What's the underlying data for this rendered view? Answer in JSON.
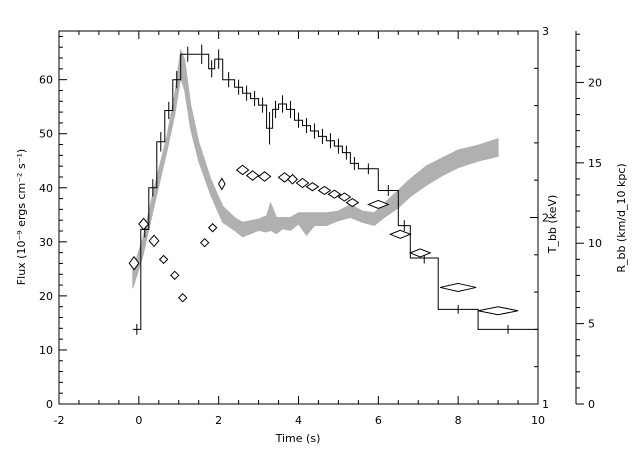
{
  "chart_data": {
    "type": "line",
    "xlabel": "Time (s)",
    "ylabel_left": "Flux (10⁻⁹ ergs cm⁻² s⁻¹)",
    "ylabel_right_inner": "T_bb (keV)",
    "ylabel_right_outer": "R_bb (km/d_10 kpc)",
    "xlim": [
      -2,
      10
    ],
    "ylim_left": [
      0,
      69
    ],
    "ylim_Tbb": [
      1,
      3
    ],
    "ylim_Rbb": [
      0,
      23.2
    ],
    "x_ticks": [
      -2,
      0,
      2,
      4,
      6,
      8,
      10
    ],
    "y_left_ticks": [
      0,
      10,
      20,
      30,
      40,
      50,
      60
    ],
    "y_Tbb_ticks": [
      1,
      2,
      3
    ],
    "y_Rbb_ticks": [
      0,
      5,
      10,
      15,
      20
    ],
    "colors": {
      "axes": "#000000",
      "band": "#b0b0b0"
    },
    "series": [
      {
        "style": "histogram",
        "points": [
          [
            -0.15,
            0.05,
            13.8,
            1.0
          ],
          [
            0.05,
            0.25,
            32.3,
            1.5
          ],
          [
            0.25,
            0.45,
            40.0,
            1.6
          ],
          [
            0.45,
            0.65,
            48.5,
            1.8
          ],
          [
            0.65,
            0.85,
            54.3,
            1.6
          ],
          [
            0.85,
            1.05,
            60.0,
            1.6
          ],
          [
            1.05,
            1.4,
            64.7,
            1.4
          ],
          [
            1.4,
            1.75,
            64.7,
            1.8
          ],
          [
            1.75,
            1.9,
            62.0,
            1.6
          ],
          [
            1.9,
            2.1,
            63.8,
            1.8
          ],
          [
            2.1,
            2.4,
            60.0,
            1.4
          ],
          [
            2.4,
            2.6,
            58.6,
            1.4
          ],
          [
            2.6,
            2.8,
            57.5,
            1.4
          ],
          [
            2.8,
            3.0,
            56.5,
            1.4
          ],
          [
            3.0,
            3.2,
            55.3,
            1.4
          ],
          [
            3.2,
            3.35,
            51.0,
            3.0
          ],
          [
            3.35,
            3.5,
            54.5,
            1.6
          ],
          [
            3.5,
            3.7,
            55.5,
            1.6
          ],
          [
            3.7,
            3.9,
            54.5,
            1.6
          ],
          [
            3.9,
            4.1,
            52.5,
            1.4
          ],
          [
            4.1,
            4.3,
            51.5,
            1.4
          ],
          [
            4.3,
            4.5,
            50.5,
            1.4
          ],
          [
            4.5,
            4.7,
            49.5,
            1.4
          ],
          [
            4.7,
            4.9,
            48.7,
            1.4
          ],
          [
            4.9,
            5.1,
            47.7,
            1.4
          ],
          [
            5.1,
            5.3,
            46.5,
            1.3
          ],
          [
            5.3,
            5.5,
            44.5,
            1.2
          ],
          [
            5.5,
            6.0,
            43.5,
            1.0
          ],
          [
            6.0,
            6.5,
            39.5,
            1.0
          ],
          [
            6.5,
            6.8,
            33.0,
            1.0
          ],
          [
            6.8,
            7.5,
            27.0,
            1.0
          ],
          [
            7.5,
            8.5,
            17.5,
            0.8
          ],
          [
            8.5,
            10.0,
            13.8,
            0.8
          ]
        ]
      },
      {
        "style": "diamonds",
        "points": [
          [
            -0.12,
            1.755,
            0.12,
            0.035
          ],
          [
            0.12,
            1.965,
            0.12,
            0.03
          ],
          [
            0.38,
            1.875,
            0.12,
            0.03
          ],
          [
            0.62,
            1.775,
            0.1,
            0.02
          ],
          [
            0.9,
            1.69,
            0.1,
            0.02
          ],
          [
            1.1,
            1.57,
            0.1,
            0.015
          ],
          [
            1.65,
            1.865,
            0.1,
            0.02
          ],
          [
            1.85,
            1.945,
            0.1,
            0.02
          ],
          [
            2.08,
            2.18,
            0.08,
            0.03
          ],
          [
            2.6,
            2.255,
            0.15,
            0.025
          ],
          [
            2.85,
            2.225,
            0.15,
            0.025
          ],
          [
            3.15,
            2.22,
            0.15,
            0.025
          ],
          [
            3.65,
            2.215,
            0.15,
            0.025
          ],
          [
            3.85,
            2.205,
            0.12,
            0.025
          ],
          [
            4.1,
            2.185,
            0.15,
            0.025
          ],
          [
            4.35,
            2.165,
            0.15,
            0.02
          ],
          [
            4.65,
            2.145,
            0.15,
            0.02
          ],
          [
            4.9,
            2.125,
            0.15,
            0.02
          ],
          [
            5.15,
            2.11,
            0.15,
            0.02
          ],
          [
            5.35,
            2.08,
            0.15,
            0.02
          ],
          [
            6.0,
            2.07,
            0.25,
            0.015
          ],
          [
            6.55,
            1.91,
            0.25,
            0.015
          ],
          [
            7.05,
            1.81,
            0.25,
            0.012
          ],
          [
            8.0,
            1.625,
            0.45,
            0.01
          ],
          [
            9.0,
            1.5,
            0.5,
            0.01
          ]
        ]
      },
      {
        "style": "band",
        "x": [
          -0.15,
          0.1,
          0.4,
          0.7,
          0.9,
          1.05,
          1.15,
          1.3,
          1.5,
          1.8,
          2.1,
          2.4,
          2.6,
          2.8,
          3.0,
          3.2,
          3.3,
          3.45,
          3.6,
          3.8,
          4.0,
          4.2,
          4.4,
          4.7,
          5.0,
          5.3,
          5.6,
          5.9,
          6.2,
          6.5,
          6.8,
          7.2,
          7.6,
          8.0,
          8.5,
          9.0
        ],
        "lower": [
          7.2,
          9.2,
          12.5,
          15.7,
          18.0,
          20.3,
          19.5,
          17.1,
          15.1,
          13.0,
          11.3,
          10.8,
          10.4,
          10.6,
          10.8,
          10.7,
          10.8,
          10.6,
          10.9,
          10.8,
          11.2,
          10.5,
          11.1,
          11.1,
          11.4,
          11.6,
          11.3,
          11.1,
          11.7,
          12.2,
          12.9,
          13.6,
          14.2,
          14.7,
          15.1,
          15.4
        ],
        "upper": [
          8.3,
          10.3,
          13.6,
          16.6,
          19.3,
          22.0,
          21.4,
          18.6,
          16.3,
          14.0,
          12.3,
          11.6,
          11.3,
          11.4,
          11.5,
          11.7,
          12.5,
          11.6,
          11.6,
          11.6,
          11.9,
          11.9,
          11.9,
          11.9,
          12.0,
          12.4,
          12.0,
          11.9,
          12.6,
          13.3,
          14.0,
          14.8,
          15.3,
          15.8,
          16.1,
          16.5
        ]
      }
    ]
  }
}
